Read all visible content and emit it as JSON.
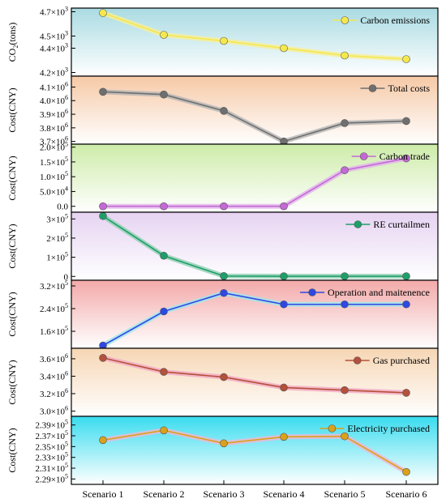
{
  "chart_data": {
    "type": "line",
    "categories": [
      "Scenario 1",
      "Scenario 2",
      "Scenario 3",
      "Scenario 4",
      "Scenario 5",
      "Scenario 6"
    ],
    "panels": [
      {
        "ylabel_main": "CO",
        "ylabel_sub": "2",
        "ylabel_tail": "(tons)",
        "ylim": [
          4170,
          4730
        ],
        "ticks": [
          {
            "v": 4200,
            "m": "4.2",
            "e": "3"
          },
          {
            "v": 4400,
            "m": "4.4",
            "e": "3"
          },
          {
            "v": 4500,
            "m": "4.5",
            "e": "3"
          },
          {
            "v": 4700,
            "m": "4.7",
            "e": "3"
          }
        ],
        "series": [
          {
            "name": "Carbon emissions",
            "values": [
              4690,
              4510,
              4460,
              4400,
              4340,
              4310
            ],
            "color": "#f4e84e",
            "shadow": "#f7ef9a"
          }
        ],
        "bg": [
          "#a9dbe2",
          "#ffffff"
        ]
      },
      {
        "ylabel_main": "Cost(CNY)",
        "ylim": [
          3680000,
          4180000
        ],
        "ticks": [
          {
            "v": 3700000,
            "m": "3.7",
            "e": "6"
          },
          {
            "v": 3800000,
            "m": "3.8",
            "e": "6"
          },
          {
            "v": 3900000,
            "m": "3.9",
            "e": "6"
          },
          {
            "v": 4000000,
            "m": "4.0",
            "e": "6"
          },
          {
            "v": 4100000,
            "m": "4.1",
            "e": "6"
          }
        ],
        "series": [
          {
            "name": "Total costs",
            "values": [
              4065000,
              4045000,
              3925000,
              3700000,
              3835000,
              3850000
            ],
            "color": "#6f6f6f",
            "shadow": "#b5b5b5"
          }
        ],
        "bg": [
          "#f6c9a6",
          "#ffffff"
        ]
      },
      {
        "ylabel_main": "Cost(CNY)",
        "ylim": [
          -20000,
          210000
        ],
        "ticks": [
          {
            "v": 0,
            "plain": "0.0"
          },
          {
            "v": 50000,
            "m": "5.0",
            "e": "4"
          },
          {
            "v": 100000,
            "m": "1.0",
            "e": "5"
          },
          {
            "v": 150000,
            "m": "1.5",
            "e": "5"
          },
          {
            "v": 200000,
            "m": "2.0",
            "e": "5"
          }
        ],
        "series": [
          {
            "name": "Carbon trade",
            "values": [
              0,
              0,
              0,
              0,
              122000,
              162000
            ],
            "color": "#c469d6",
            "shadow": "#e2b3ec"
          }
        ],
        "bg": [
          "#cdeca8",
          "#ffffff"
        ]
      },
      {
        "ylabel_main": "Cost(CNY)",
        "ylim": [
          -20000,
          335000
        ],
        "ticks": [
          {
            "v": 0,
            "plain": "0"
          },
          {
            "v": 100000,
            "m": "1",
            "e": "5"
          },
          {
            "v": 200000,
            "m": "2",
            "e": "5"
          },
          {
            "v": 300000,
            "m": "3",
            "e": "5"
          }
        ],
        "series": [
          {
            "name": "RE curtailmen",
            "values": [
              315000,
              108000,
              2000,
              1000,
              1000,
              1000
            ],
            "color": "#1f9e6a",
            "shadow": "#8fd0b2"
          }
        ],
        "bg": [
          "#e6d3f2",
          "#ffffff"
        ]
      },
      {
        "ylabel_main": "Cost(CNY)",
        "ylim": [
          100000,
          340000
        ],
        "ticks": [
          {
            "v": 160000,
            "m": "1.6",
            "e": "5"
          },
          {
            "v": 240000,
            "m": "2.4",
            "e": "5"
          },
          {
            "v": 320000,
            "m": "3.2",
            "e": "5"
          }
        ],
        "series": [
          {
            "name": "Operation and maitenence",
            "values": [
              110000,
              230000,
              295000,
              255000,
              255000,
              255000
            ],
            "color": "#2f48e0",
            "shadow": "#9fe6ee"
          }
        ],
        "bg": [
          "#f3a9a9",
          "#ffffff"
        ]
      },
      {
        "ylabel_main": "Cost(CNY)",
        "ylim": [
          2940000,
          3720000
        ],
        "ticks": [
          {
            "v": 3000000,
            "m": "3.0",
            "e": "6"
          },
          {
            "v": 3200000,
            "m": "3.2",
            "e": "6"
          },
          {
            "v": 3400000,
            "m": "3.4",
            "e": "6"
          },
          {
            "v": 3600000,
            "m": "3.6",
            "e": "6"
          }
        ],
        "series": [
          {
            "name": "Gas purchased",
            "values": [
              3610000,
              3450000,
              3390000,
              3270000,
              3240000,
              3210000
            ],
            "color": "#b5503a",
            "shadow": "#f2a9c4"
          }
        ],
        "bg": [
          "#f6d6b4",
          "#ffffff"
        ]
      },
      {
        "ylabel_main": "Cost(CNY)",
        "ylim": [
          228000,
          240600
        ],
        "ticks": [
          {
            "v": 229000,
            "m": "2.29",
            "e": "5"
          },
          {
            "v": 231000,
            "m": "2.31",
            "e": "5"
          },
          {
            "v": 233000,
            "m": "2.33",
            "e": "5"
          },
          {
            "v": 235000,
            "m": "2.35",
            "e": "5"
          },
          {
            "v": 237000,
            "m": "2.37",
            "e": "5"
          },
          {
            "v": 239000,
            "m": "2.39",
            "e": "5"
          }
        ],
        "series": [
          {
            "name": "Electricity purchased",
            "values": [
              236200,
              238000,
              235600,
              236800,
              236900,
              230300
            ],
            "color": "#d9a21a",
            "shadow": "#f2b5d3"
          }
        ],
        "bg": [
          "#39dcef",
          "#ffffff"
        ]
      }
    ]
  }
}
